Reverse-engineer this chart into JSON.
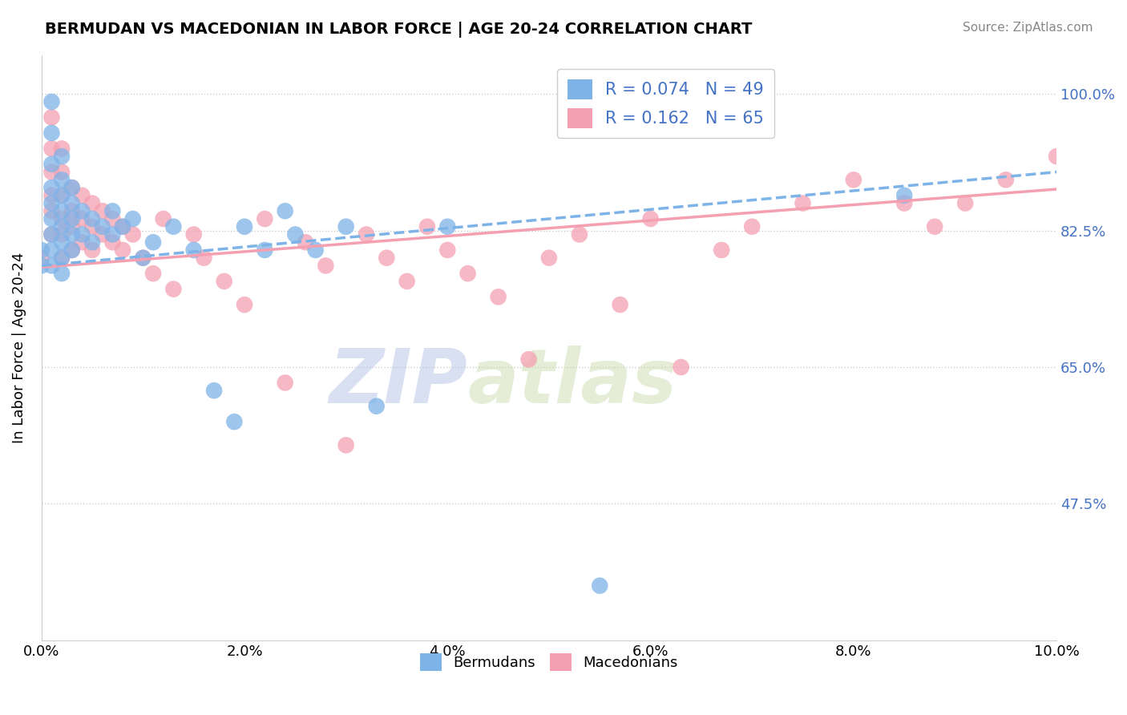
{
  "title": "BERMUDAN VS MACEDONIAN IN LABOR FORCE | AGE 20-24 CORRELATION CHART",
  "source": "Source: ZipAtlas.com",
  "ylabel": "In Labor Force | Age 20-24",
  "xmin": 0.0,
  "xmax": 0.1,
  "ymin": 0.3,
  "ymax": 1.05,
  "yticks": [
    0.475,
    0.65,
    0.825,
    1.0
  ],
  "ytick_labels": [
    "47.5%",
    "65.0%",
    "82.5%",
    "100.0%"
  ],
  "xtick_labels": [
    "0.0%",
    "2.0%",
    "4.0%",
    "6.0%",
    "8.0%",
    "10.0%"
  ],
  "xticks": [
    0.0,
    0.02,
    0.04,
    0.06,
    0.08,
    0.1
  ],
  "bermuda_color": "#7EB3E8",
  "macedonia_color": "#F4A0B0",
  "bermuda_R": 0.074,
  "bermuda_N": 49,
  "macedonia_R": 0.162,
  "macedonia_N": 65,
  "legend_bermudans": "Bermudans",
  "legend_macedonians": "Macedonians",
  "watermark_zip": "ZIP",
  "watermark_atlas": "atlas",
  "bermuda_x": [
    0.0,
    0.0,
    0.001,
    0.001,
    0.001,
    0.001,
    0.001,
    0.001,
    0.001,
    0.001,
    0.001,
    0.002,
    0.002,
    0.002,
    0.002,
    0.002,
    0.002,
    0.002,
    0.002,
    0.003,
    0.003,
    0.003,
    0.003,
    0.003,
    0.004,
    0.004,
    0.005,
    0.005,
    0.006,
    0.007,
    0.007,
    0.008,
    0.009,
    0.01,
    0.011,
    0.013,
    0.015,
    0.017,
    0.019,
    0.02,
    0.022,
    0.024,
    0.025,
    0.027,
    0.03,
    0.033,
    0.04,
    0.055,
    0.085
  ],
  "bermuda_y": [
    0.8,
    0.78,
    0.99,
    0.95,
    0.91,
    0.88,
    0.86,
    0.84,
    0.82,
    0.8,
    0.78,
    0.92,
    0.89,
    0.87,
    0.85,
    0.83,
    0.81,
    0.79,
    0.77,
    0.88,
    0.86,
    0.84,
    0.82,
    0.8,
    0.85,
    0.82,
    0.84,
    0.81,
    0.83,
    0.85,
    0.82,
    0.83,
    0.84,
    0.79,
    0.81,
    0.83,
    0.8,
    0.62,
    0.58,
    0.83,
    0.8,
    0.85,
    0.82,
    0.8,
    0.83,
    0.6,
    0.83,
    0.37,
    0.87
  ],
  "macedonia_x": [
    0.0,
    0.001,
    0.001,
    0.001,
    0.001,
    0.001,
    0.001,
    0.002,
    0.002,
    0.002,
    0.002,
    0.002,
    0.002,
    0.003,
    0.003,
    0.003,
    0.003,
    0.004,
    0.004,
    0.004,
    0.005,
    0.005,
    0.005,
    0.006,
    0.006,
    0.007,
    0.007,
    0.008,
    0.008,
    0.009,
    0.01,
    0.011,
    0.012,
    0.013,
    0.015,
    0.016,
    0.018,
    0.02,
    0.022,
    0.024,
    0.026,
    0.028,
    0.03,
    0.032,
    0.034,
    0.036,
    0.038,
    0.04,
    0.042,
    0.045,
    0.048,
    0.05,
    0.053,
    0.057,
    0.06,
    0.063,
    0.067,
    0.07,
    0.075,
    0.08,
    0.085,
    0.088,
    0.091,
    0.095,
    0.1
  ],
  "macedonia_y": [
    0.79,
    0.97,
    0.93,
    0.9,
    0.87,
    0.85,
    0.82,
    0.93,
    0.9,
    0.87,
    0.84,
    0.82,
    0.79,
    0.88,
    0.85,
    0.83,
    0.8,
    0.87,
    0.84,
    0.81,
    0.86,
    0.83,
    0.8,
    0.85,
    0.82,
    0.84,
    0.81,
    0.83,
    0.8,
    0.82,
    0.79,
    0.77,
    0.84,
    0.75,
    0.82,
    0.79,
    0.76,
    0.73,
    0.84,
    0.63,
    0.81,
    0.78,
    0.55,
    0.82,
    0.79,
    0.76,
    0.83,
    0.8,
    0.77,
    0.74,
    0.66,
    0.79,
    0.82,
    0.73,
    0.84,
    0.65,
    0.8,
    0.83,
    0.86,
    0.89,
    0.86,
    0.83,
    0.86,
    0.89,
    0.92
  ],
  "trend_b_x0": 0.0,
  "trend_b_y0": 0.78,
  "trend_b_x1": 0.1,
  "trend_b_y1": 0.9,
  "trend_m_x0": 0.0,
  "trend_m_y0": 0.778,
  "trend_m_x1": 0.1,
  "trend_m_y1": 0.878
}
